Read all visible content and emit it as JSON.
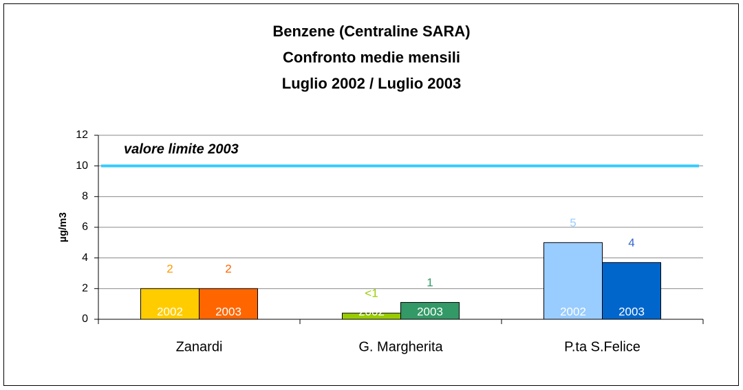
{
  "chart_data": {
    "type": "bar",
    "title": [
      "Benzene (Centraline SARA)",
      "Confronto medie mensili",
      "Luglio 2002 / Luglio 2003"
    ],
    "y_label": "µg/m3",
    "categories": [
      "Zanardi",
      "G. Margherita",
      "P.ta S.Felice"
    ],
    "series": [
      {
        "name": "2002",
        "colors": [
          "#ffcc00",
          "#99cc00",
          "#99ccff"
        ],
        "label_colors": [
          "#ff9900",
          "#99cc00",
          "#99ccff"
        ],
        "values": [
          2,
          0.4,
          5
        ],
        "value_labels": [
          "2",
          "<1",
          "5"
        ]
      },
      {
        "name": "2003",
        "colors": [
          "#ff6600",
          "#339966",
          "#0066cc"
        ],
        "label_colors": [
          "#ff6600",
          "#339966",
          "#3366cc"
        ],
        "values": [
          2,
          1.1,
          3.7
        ],
        "value_labels": [
          "2",
          "1",
          "4"
        ]
      }
    ],
    "ylim": [
      0,
      12
    ],
    "yticks": [
      0,
      2,
      4,
      6,
      8,
      10,
      12
    ],
    "grid": true,
    "reference_line": {
      "value": 10,
      "label": "valore limite 2003",
      "color": "#33ccff"
    }
  }
}
